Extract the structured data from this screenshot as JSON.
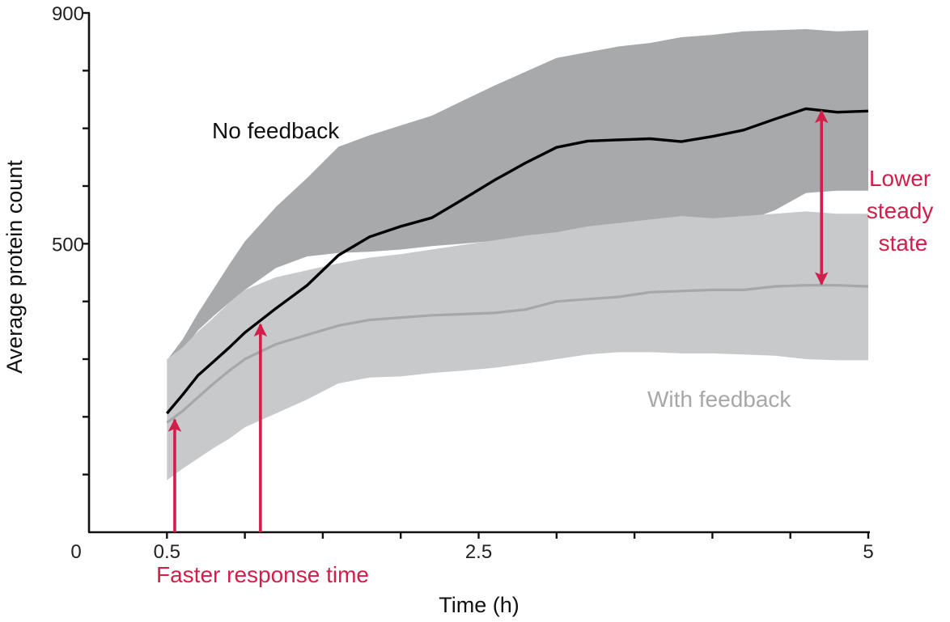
{
  "chart_data": {
    "type": "line",
    "title": "",
    "xlabel": "Time (h)",
    "ylabel": "Average protein count",
    "xlim": [
      0,
      5
    ],
    "ylim": [
      0,
      900
    ],
    "x_ticks": [
      0,
      0.5,
      1.0,
      1.5,
      2.0,
      2.5,
      3.0,
      3.5,
      4.0,
      4.5,
      5.0
    ],
    "x_tick_labels": [
      {
        "value": 0,
        "label": "0"
      },
      {
        "value": 0.5,
        "label": "0.5"
      },
      {
        "value": 2.5,
        "label": "2.5"
      },
      {
        "value": 5,
        "label": "5"
      }
    ],
    "y_ticks": [
      0,
      100,
      200,
      300,
      400,
      500,
      600,
      700,
      800,
      900
    ],
    "y_tick_labels": [
      {
        "value": 500,
        "label": "500"
      },
      {
        "value": 900,
        "label": "900"
      }
    ],
    "grid": false,
    "legend": "none",
    "series": [
      {
        "name": "No feedback",
        "color": "#000000",
        "band_color": "#a8a9ab",
        "x": [
          0.5,
          0.6,
          0.7,
          0.8,
          0.9,
          1.0,
          1.2,
          1.4,
          1.6,
          1.8,
          2.0,
          2.2,
          2.4,
          2.6,
          2.8,
          3.0,
          3.2,
          3.4,
          3.6,
          3.8,
          4.0,
          4.2,
          4.4,
          4.6,
          4.8,
          5.0
        ],
        "mean": [
          206,
          238,
          272,
          296,
          320,
          346,
          388,
          428,
          480,
          512,
          530,
          545,
          577,
          610,
          640,
          667,
          678,
          680,
          682,
          677,
          686,
          697,
          716,
          734,
          728,
          730
        ],
        "lower": [
          296,
          315,
          350,
          375,
          398,
          420,
          458,
          478,
          484,
          486,
          490,
          496,
          500,
          505,
          510,
          512,
          518,
          524,
          516,
          517,
          525,
          538,
          558,
          588,
          592,
          592
        ],
        "upper": [
          298,
          334,
          380,
          422,
          464,
          504,
          564,
          614,
          668,
          688,
          705,
          722,
          748,
          774,
          798,
          822,
          832,
          842,
          848,
          858,
          862,
          868,
          870,
          872,
          868,
          870
        ]
      },
      {
        "name": "With feedback",
        "color": "#a6a7a9",
        "band_color": "#c8c9cb",
        "x": [
          0.5,
          0.6,
          0.7,
          0.8,
          0.9,
          1.0,
          1.2,
          1.4,
          1.6,
          1.8,
          2.0,
          2.2,
          2.4,
          2.6,
          2.8,
          3.0,
          3.2,
          3.4,
          3.6,
          3.8,
          4.0,
          4.2,
          4.4,
          4.6,
          4.8,
          5.0
        ],
        "mean": [
          190,
          210,
          234,
          258,
          280,
          300,
          326,
          342,
          358,
          368,
          372,
          376,
          378,
          380,
          386,
          400,
          404,
          408,
          416,
          418,
          420,
          420,
          426,
          428,
          428,
          426
        ],
        "lower": [
          90,
          110,
          128,
          146,
          162,
          182,
          206,
          230,
          258,
          268,
          270,
          276,
          280,
          285,
          292,
          300,
          308,
          312,
          312,
          310,
          310,
          308,
          306,
          300,
          298,
          298
        ],
        "upper": [
          300,
          320,
          348,
          372,
          398,
          420,
          442,
          454,
          466,
          476,
          482,
          490,
          498,
          506,
          514,
          520,
          530,
          536,
          542,
          548,
          544,
          548,
          552,
          556,
          552,
          552
        ]
      }
    ],
    "annotations": [
      {
        "text": "No feedback",
        "color": "#111111"
      },
      {
        "text": "With feedback",
        "color": "#a6a7a9"
      },
      {
        "lines": [
          "Lower",
          "steady",
          "state"
        ],
        "color": "#d11f4a"
      },
      {
        "text": "Faster response time",
        "color": "#d11f4a"
      }
    ],
    "arrows": [
      {
        "x": 0.55,
        "from_y": 0,
        "to_y": 195,
        "color": "#d11f4a"
      },
      {
        "x": 1.1,
        "from_y": 0,
        "to_y": 360,
        "color": "#d11f4a"
      },
      {
        "x": 4.7,
        "from_y": 430,
        "to_y": 730,
        "color": "#d11f4a",
        "double": true
      }
    ]
  }
}
